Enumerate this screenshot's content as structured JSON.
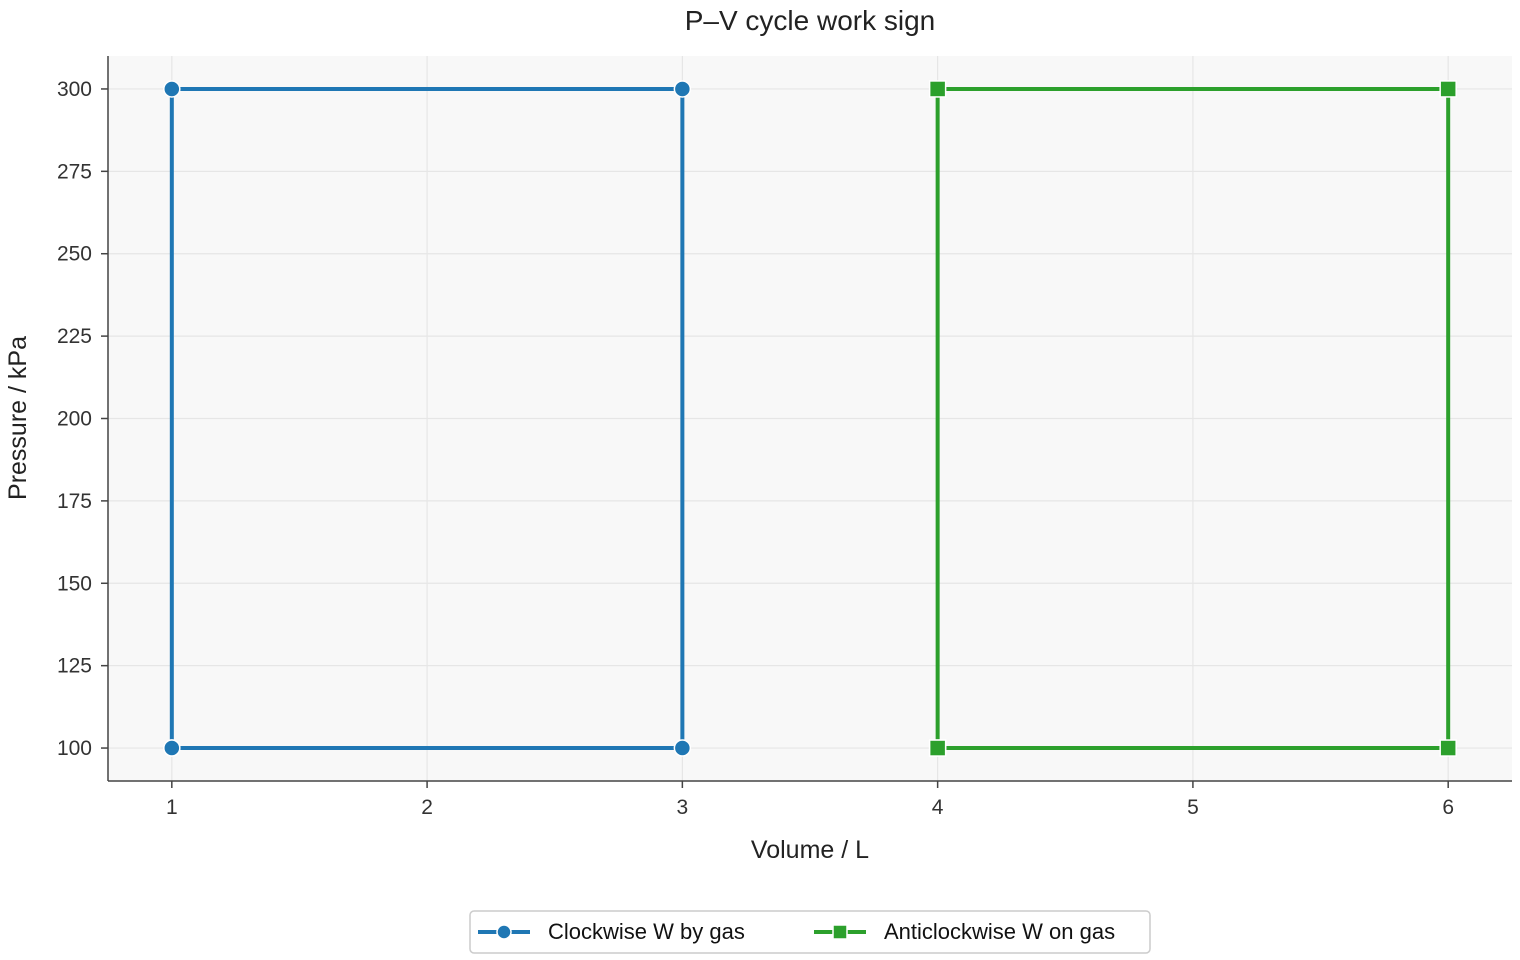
{
  "chart_data": {
    "type": "line",
    "title": "P–V cycle work sign",
    "xlabel": "Volume / L",
    "ylabel": "Pressure / kPa",
    "xlim": [
      0.75,
      6.25
    ],
    "ylim": [
      90,
      310
    ],
    "xticks": [
      1,
      2,
      3,
      4,
      5,
      6
    ],
    "yticks": [
      100,
      125,
      150,
      175,
      200,
      225,
      250,
      275,
      300
    ],
    "grid": true,
    "legend_position": "bottom-center",
    "series": [
      {
        "name": "Clockwise W by gas",
        "color": "#1f77b4",
        "marker": "circle",
        "x": [
          1,
          1,
          3,
          3,
          1
        ],
        "y": [
          100,
          300,
          300,
          100,
          100
        ]
      },
      {
        "name": "Anticlockwise W on gas",
        "color": "#2ca02c",
        "marker": "square",
        "x": [
          4,
          6,
          6,
          4,
          4
        ],
        "y": [
          100,
          100,
          300,
          300,
          100
        ]
      }
    ]
  }
}
